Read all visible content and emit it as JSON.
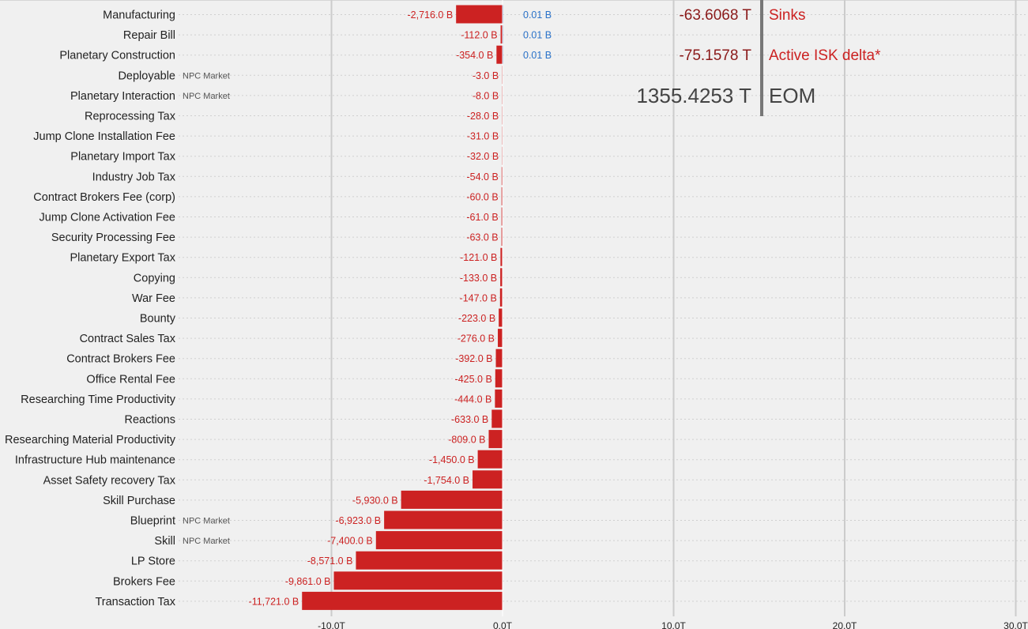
{
  "chart_data": {
    "type": "bar",
    "orientation": "horizontal",
    "unit": "B",
    "xlim": [
      -20000,
      30000
    ],
    "x_ticks": [
      {
        "value": -10000,
        "label": "-10.0T"
      },
      {
        "value": 0,
        "label": "0.0T"
      },
      {
        "value": 10000,
        "label": "10.0T"
      },
      {
        "value": 20000,
        "label": "20.0T"
      },
      {
        "value": 30000,
        "label": "30.0T"
      }
    ],
    "grid": true,
    "colors": {
      "negative": "#cc2222",
      "positive": "#2a72c9",
      "summary_neutral": "#444444",
      "summary_accent": "#cc2222"
    },
    "categories": [
      {
        "name": "Manufacturing",
        "value": -2716.0,
        "label": "-2,716.0 B",
        "positive_value": 0.01,
        "positive_label": "0.01 B"
      },
      {
        "name": "Repair Bill",
        "value": -112.0,
        "label": "-112.0 B",
        "positive_value": 0.01,
        "positive_label": "0.01 B"
      },
      {
        "name": "Planetary Construction",
        "value": -354.0,
        "label": "-354.0 B",
        "positive_value": 0.01,
        "positive_label": "0.01 B"
      },
      {
        "name": "Deployable",
        "tag": "NPC Market",
        "value": -3.0,
        "label": "-3.0 B"
      },
      {
        "name": "Planetary Interaction",
        "tag": "NPC Market",
        "value": -8.0,
        "label": "-8.0 B"
      },
      {
        "name": "Reprocessing Tax",
        "value": -28.0,
        "label": "-28.0 B"
      },
      {
        "name": "Jump Clone Installation Fee",
        "value": -31.0,
        "label": "-31.0 B"
      },
      {
        "name": "Planetary Import Tax",
        "value": -32.0,
        "label": "-32.0 B"
      },
      {
        "name": "Industry Job Tax",
        "value": -54.0,
        "label": "-54.0 B"
      },
      {
        "name": "Contract Brokers Fee (corp)",
        "value": -60.0,
        "label": "-60.0 B"
      },
      {
        "name": "Jump Clone Activation Fee",
        "value": -61.0,
        "label": "-61.0 B"
      },
      {
        "name": "Security Processing Fee",
        "value": -63.0,
        "label": "-63.0 B"
      },
      {
        "name": "Planetary Export Tax",
        "value": -121.0,
        "label": "-121.0 B"
      },
      {
        "name": "Copying",
        "value": -133.0,
        "label": "-133.0 B"
      },
      {
        "name": "War Fee",
        "value": -147.0,
        "label": "-147.0 B"
      },
      {
        "name": "Bounty",
        "value": -223.0,
        "label": "-223.0 B"
      },
      {
        "name": "Contract Sales Tax",
        "value": -276.0,
        "label": "-276.0 B"
      },
      {
        "name": "Contract Brokers Fee",
        "value": -392.0,
        "label": "-392.0 B"
      },
      {
        "name": "Office Rental Fee",
        "value": -425.0,
        "label": "-425.0 B"
      },
      {
        "name": "Researching Time Productivity",
        "value": -444.0,
        "label": "-444.0 B"
      },
      {
        "name": "Reactions",
        "value": -633.0,
        "label": "-633.0 B"
      },
      {
        "name": "Researching Material Productivity",
        "value": -809.0,
        "label": "-809.0 B"
      },
      {
        "name": "Infrastructure Hub maintenance",
        "value": -1450.0,
        "label": "-1,450.0 B"
      },
      {
        "name": "Asset Safety recovery Tax",
        "value": -1754.0,
        "label": "-1,754.0 B"
      },
      {
        "name": "Skill Purchase",
        "value": -5930.0,
        "label": "-5,930.0 B"
      },
      {
        "name": "Blueprint",
        "tag": "NPC Market",
        "value": -6923.0,
        "label": "-6,923.0 B"
      },
      {
        "name": "Skill",
        "tag": "NPC Market",
        "value": -7400.0,
        "label": "-7,400.0 B"
      },
      {
        "name": "LP Store",
        "value": -8571.0,
        "label": "-8,571.0 B"
      },
      {
        "name": "Brokers Fee",
        "value": -9861.0,
        "label": "-9,861.0 B"
      },
      {
        "name": "Transaction Tax",
        "value": -11721.0,
        "label": "-11,721.0 B"
      }
    ],
    "summary": [
      {
        "value": "-63.6068 T",
        "label": "Sinks",
        "value_color": "#8b1a1a",
        "label_color": "#cc2222",
        "size": "normal"
      },
      {
        "value": "-75.1578 T",
        "label": "Active ISK delta*",
        "value_color": "#8b1a1a",
        "label_color": "#cc2222",
        "size": "normal"
      },
      {
        "value": "1355.4253 T",
        "label": "EOM",
        "value_color": "#444444",
        "label_color": "#444444",
        "size": "big"
      }
    ]
  }
}
